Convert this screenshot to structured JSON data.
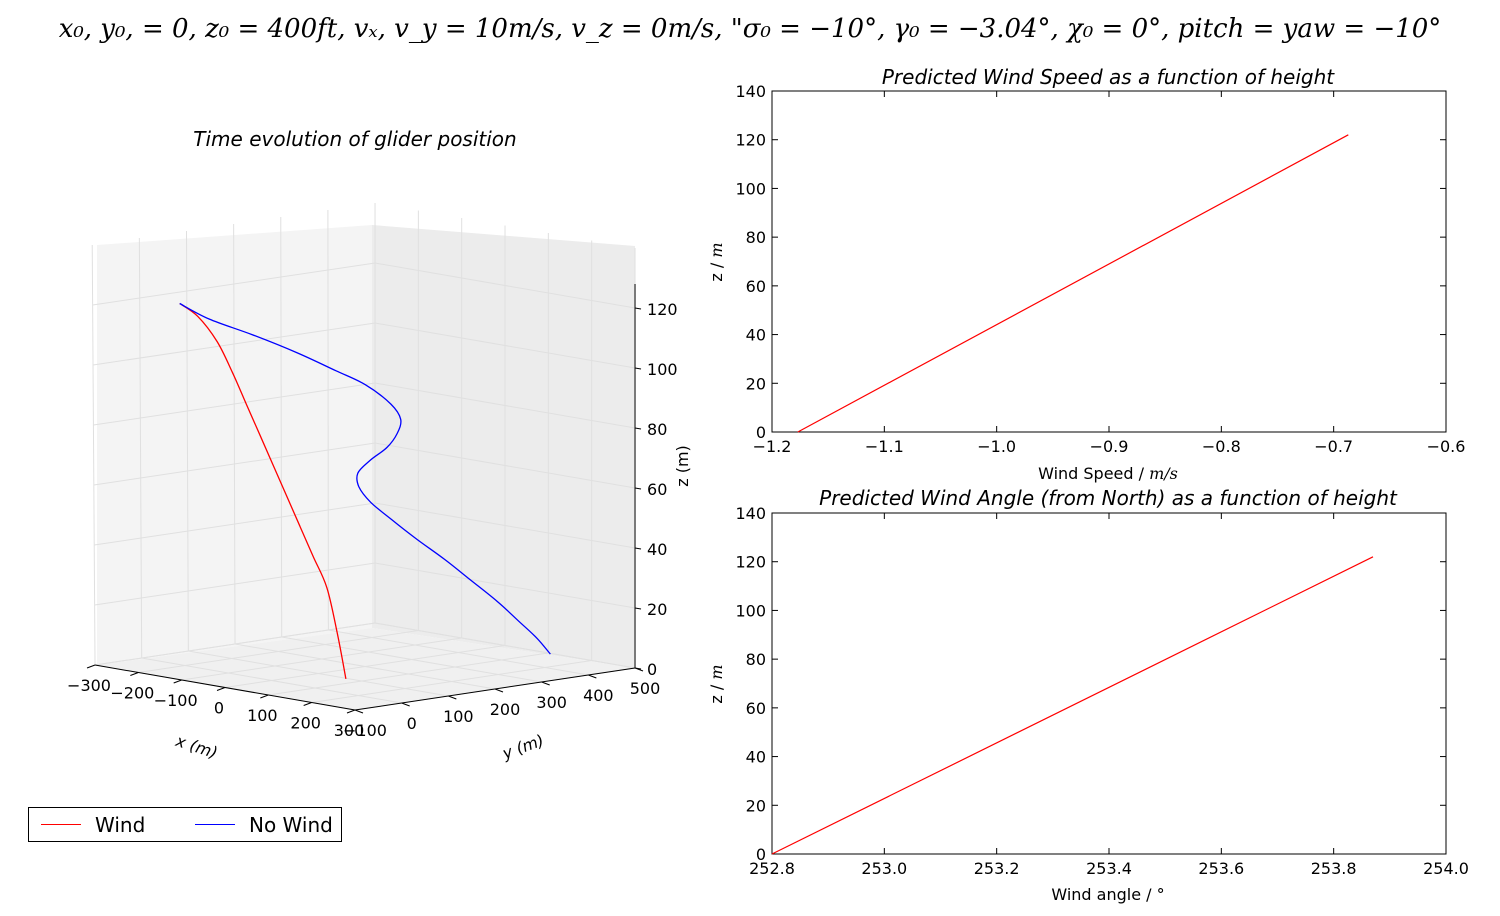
{
  "suptitle": "x₀, y₀, = 0,  z₀ = 400ft,  vₓ, v_y = 10m/s, v_z = 0m/s,   \"σ₀ = −10°, γ₀ = −3.04°, χ₀ = 0°, pitch = yaw = −10°",
  "colors": {
    "wind": "#ff0000",
    "no_wind": "#0000ff",
    "pane": "#f2f2f2",
    "grid": "#e0e0e0"
  },
  "legend": {
    "items": [
      {
        "label": "Wind",
        "color": "#ff0000"
      },
      {
        "label": "No Wind",
        "color": "#0000ff"
      }
    ]
  },
  "chart_data": [
    {
      "type": "line3d",
      "title": "Time evolution of glider position",
      "xlabel": "x (m)",
      "ylabel": "y (m)",
      "zlabel": "z (m)",
      "xlim": [
        -300,
        300
      ],
      "ylim": [
        -100,
        500
      ],
      "zlim": [
        0,
        125
      ],
      "xticks": [
        "−300",
        "−200",
        "−100",
        "0",
        "100",
        "200",
        "300"
      ],
      "yticks": [
        "−100",
        "0",
        "100",
        "200",
        "300",
        "400",
        "500"
      ],
      "zticks": [
        "0",
        "20",
        "40",
        "60",
        "80",
        "100",
        "120"
      ],
      "series": [
        {
          "name": "Wind",
          "color": "#ff0000",
          "x": [
            -175,
            -150,
            -122,
            -100,
            -80,
            -60,
            -40,
            -20,
            0,
            20,
            40,
            55,
            68
          ],
          "y": [
            -30,
            -15,
            0,
            12,
            22,
            32,
            42,
            52,
            62,
            72,
            82,
            90,
            96
          ],
          "z": [
            122,
            118,
            110,
            100,
            90,
            80,
            70,
            60,
            50,
            40,
            30,
            15,
            0
          ]
        },
        {
          "name": "No Wind",
          "color": "#0000ff",
          "x": [
            -175,
            -140,
            -90,
            -40,
            0,
            25,
            40,
            30,
            0,
            -40,
            -95,
            -145,
            -175,
            -180,
            -165,
            -130,
            -80,
            -30,
            20,
            60,
            90,
            110
          ],
          "y": [
            -30,
            0,
            45,
            95,
            140,
            180,
            220,
            250,
            270,
            285,
            300,
            320,
            350,
            380,
            410,
            430,
            445,
            455,
            465,
            475,
            485,
            495
          ],
          "z": [
            122,
            117,
            112,
            106,
            100,
            95,
            88,
            82,
            76,
            70,
            64,
            58,
            52,
            46,
            40,
            34,
            28,
            22,
            16,
            10,
            5,
            0
          ]
        }
      ]
    },
    {
      "type": "line",
      "title": "Predicted Wind Speed as a function of height",
      "xlabel": "Wind Speed / ",
      "xunit": "m/s",
      "ylabel": "z / ",
      "yunit": "m",
      "xlim": [
        -1.2,
        -0.6
      ],
      "ylim": [
        0,
        140
      ],
      "xticks": [
        -1.2,
        -1.1,
        -1.0,
        -0.9,
        -0.8,
        -0.7,
        -0.6
      ],
      "xtick_labels": [
        "−1.2",
        "−1.1",
        "−1.0",
        "−0.9",
        "−0.8",
        "−0.7",
        "−0.6"
      ],
      "yticks": [
        0,
        20,
        40,
        60,
        80,
        100,
        120,
        140
      ],
      "ytick_labels": [
        "0",
        "20",
        "40",
        "60",
        "80",
        "100",
        "120",
        "140"
      ],
      "series": [
        {
          "color": "#ff0000",
          "x": [
            -1.177,
            -0.687
          ],
          "y": [
            0,
            122
          ]
        }
      ]
    },
    {
      "type": "line",
      "title": "Predicted Wind Angle (from North) as a function of height",
      "xlabel": "Wind angle / ",
      "xunit": "°",
      "ylabel": "z / ",
      "yunit": "m",
      "xlim": [
        252.8,
        254.0
      ],
      "ylim": [
        0,
        140
      ],
      "xticks": [
        252.8,
        253.0,
        253.2,
        253.4,
        253.6,
        253.8,
        254.0
      ],
      "xtick_labels": [
        "252.8",
        "253.0",
        "253.2",
        "253.4",
        "253.6",
        "253.8",
        "254.0"
      ],
      "yticks": [
        0,
        20,
        40,
        60,
        80,
        100,
        120,
        140
      ],
      "ytick_labels": [
        "0",
        "20",
        "40",
        "60",
        "80",
        "100",
        "120",
        "140"
      ],
      "series": [
        {
          "color": "#ff0000",
          "x": [
            252.8,
            253.87
          ],
          "y": [
            0,
            122
          ]
        }
      ]
    }
  ]
}
